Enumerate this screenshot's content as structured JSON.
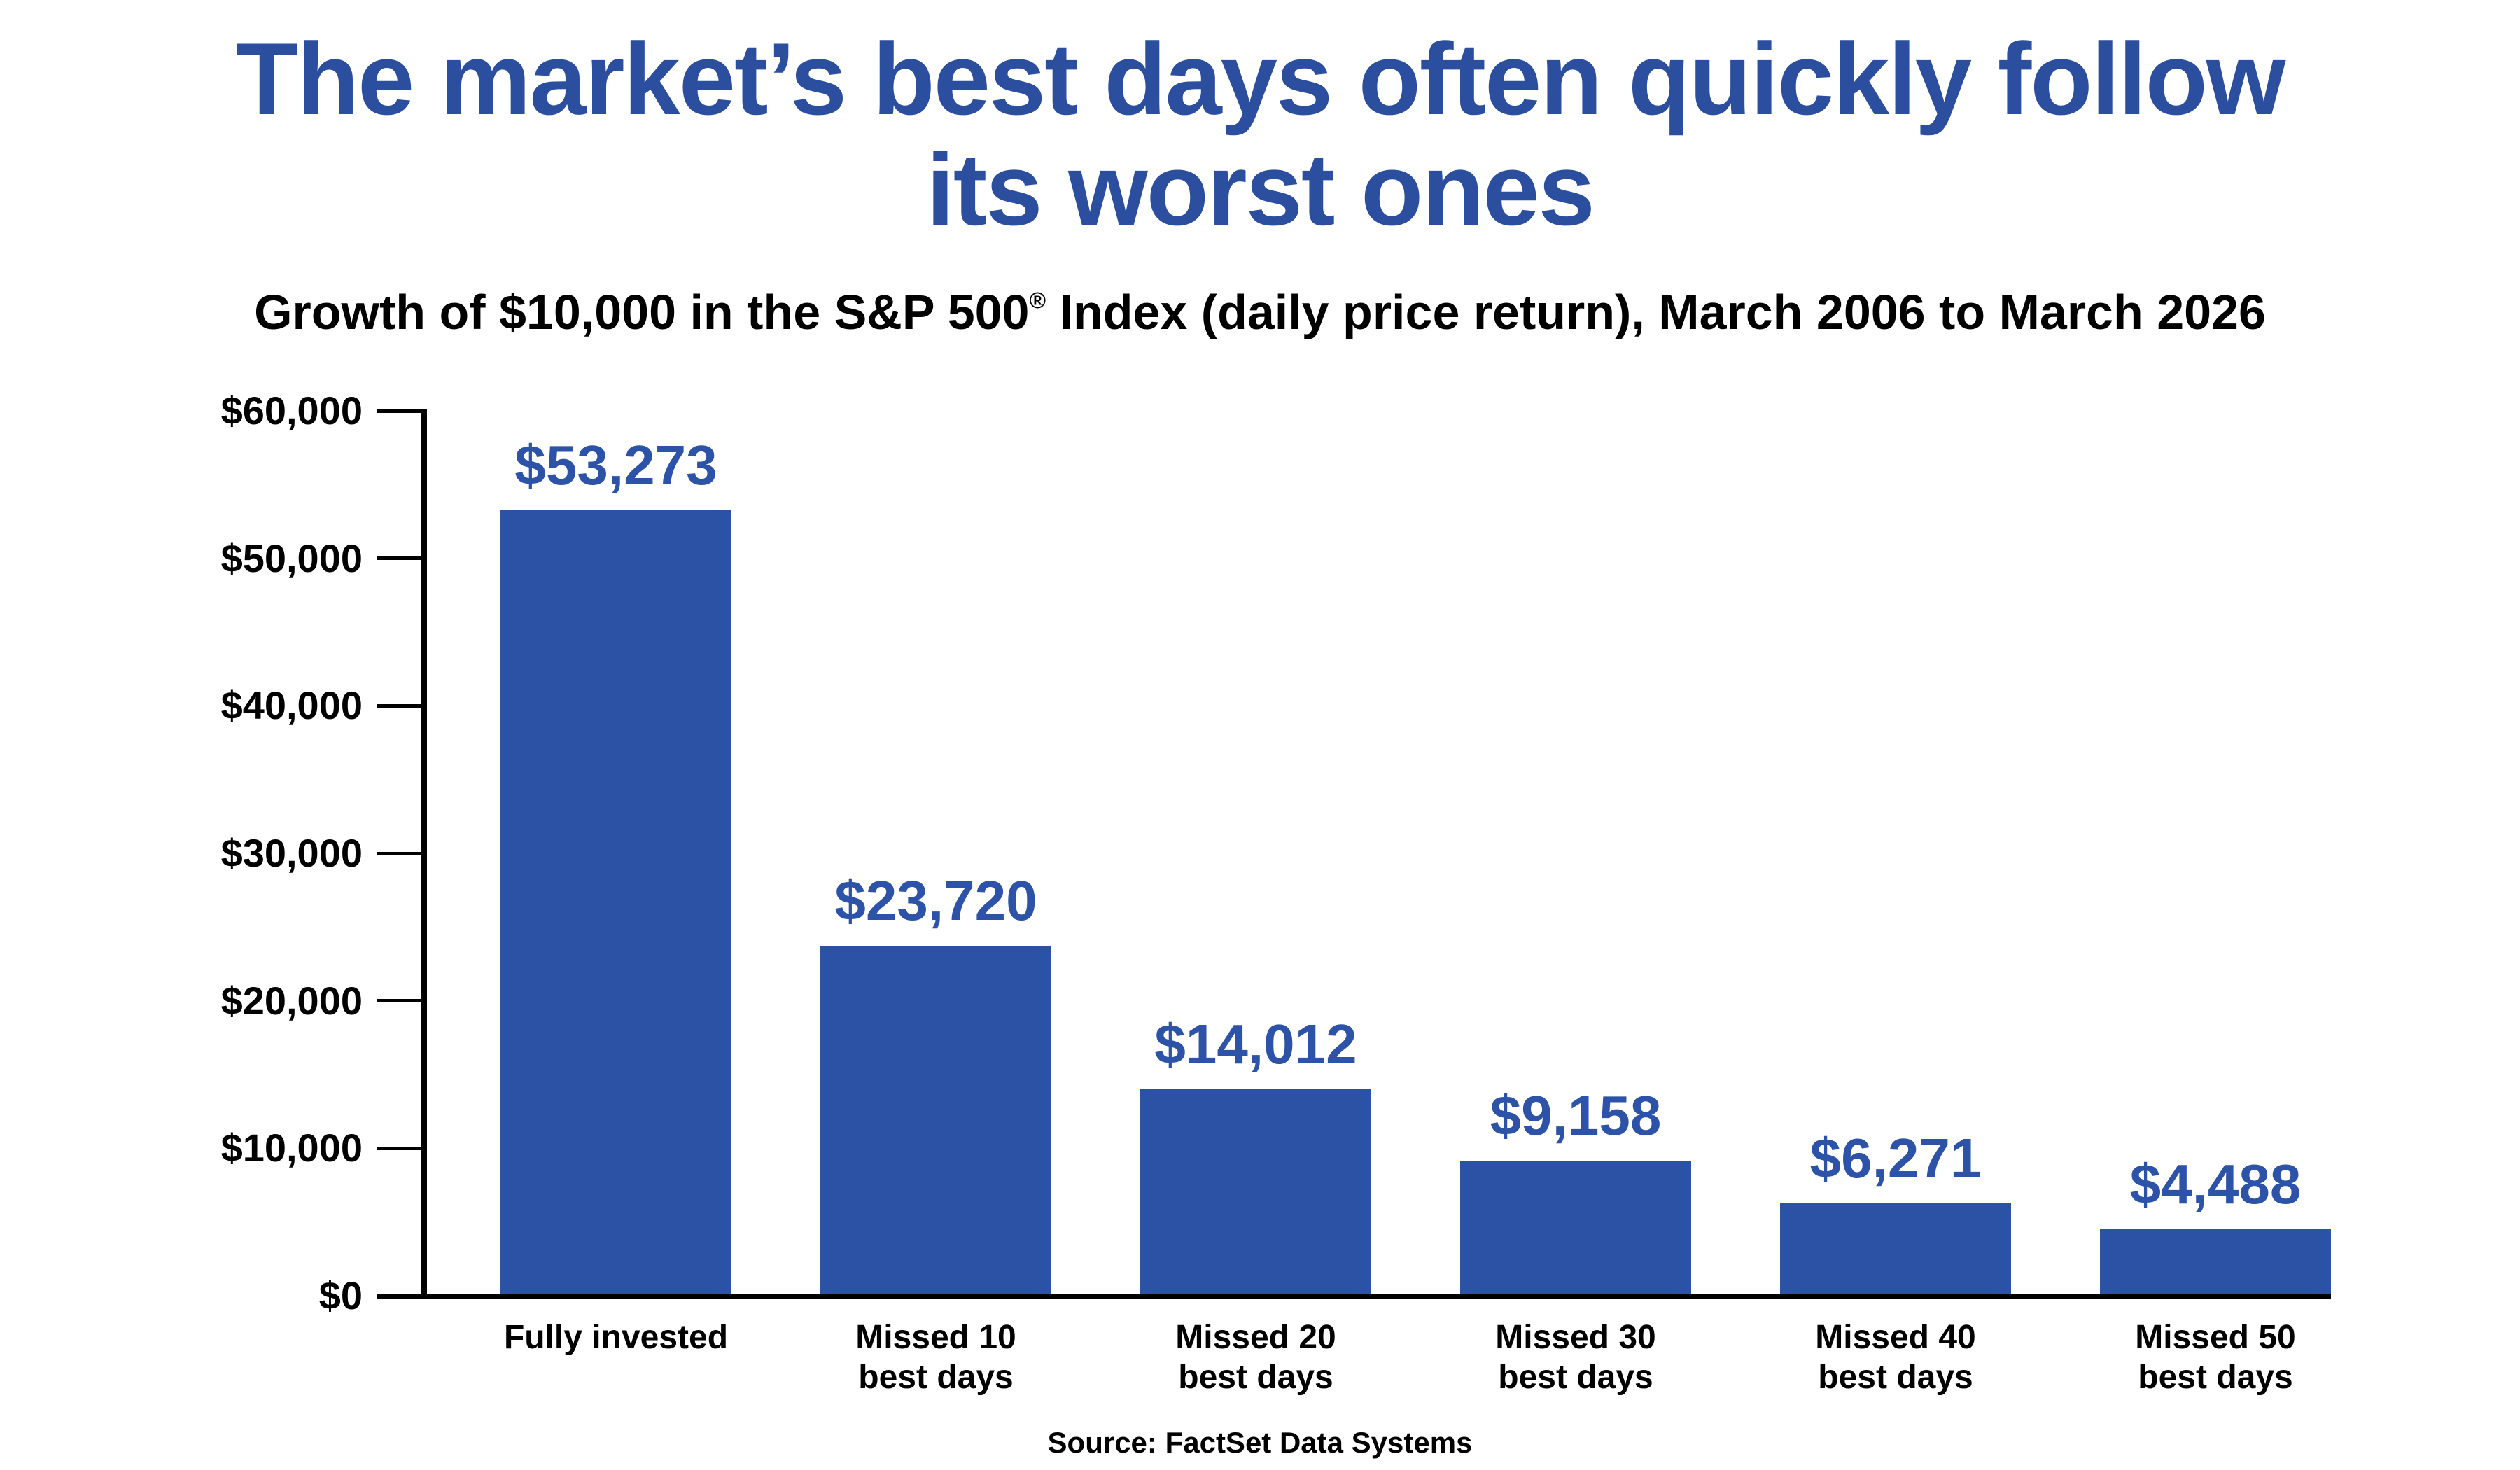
{
  "title": {
    "line1": "The market’s best days often quickly follow",
    "line2": "its worst ones"
  },
  "subtitle": {
    "pre": "Growth of $10,000 in the S&P 500",
    "sup": "®",
    "post": " Index (daily price return), March 2006 to March 2026"
  },
  "source": "Source: FactSet Data Systems",
  "colors": {
    "title_blue": "#2b4f9e",
    "bar_blue": "#2c52a6",
    "value_blue": "#2d53a8",
    "axis_black": "#000000"
  },
  "chart_data": {
    "type": "bar",
    "title": "Growth of $10,000 in the S&P 500 Index (daily price return), March 2006 to March 2026",
    "xlabel": "",
    "ylabel": "",
    "ylim": [
      0,
      60000
    ],
    "grid": false,
    "legend": false,
    "categories": [
      "Fully invested",
      "Missed 10\nbest days",
      "Missed 20\nbest days",
      "Missed 30\nbest days",
      "Missed 40\nbest days",
      "Missed 50\nbest days"
    ],
    "values": [
      53273,
      23720,
      14012,
      9158,
      6271,
      4488
    ],
    "value_labels": [
      "$53,273",
      "$23,720",
      "$14,012",
      "$9,158",
      "$6,271",
      "$4,488"
    ],
    "y_ticks": [
      "$60,000",
      "$50,000",
      "$40,000",
      "$30,000",
      "$20,000",
      "$10,000",
      "$0"
    ],
    "y_tick_values": [
      60000,
      50000,
      40000,
      30000,
      20000,
      10000,
      0
    ]
  }
}
